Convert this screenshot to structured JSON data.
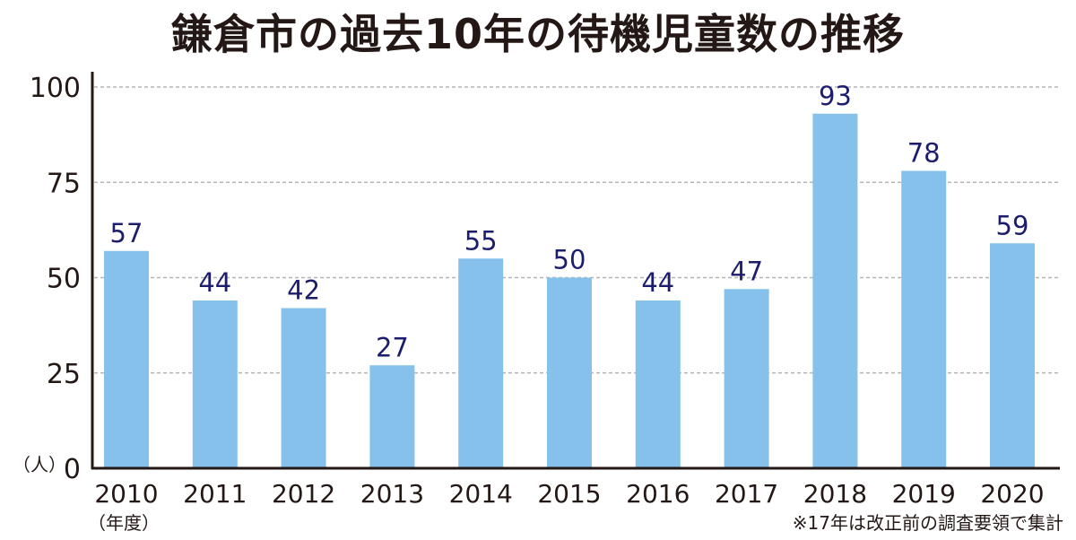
{
  "chart_data": {
    "type": "bar",
    "title": "鎌倉市の過去10年の待機児童数の推移",
    "categories": [
      "2010",
      "2011",
      "2012",
      "2013",
      "2014",
      "2015",
      "2016",
      "2017",
      "2018",
      "2019",
      "2020"
    ],
    "values": [
      57,
      44,
      42,
      27,
      55,
      50,
      44,
      47,
      93,
      78,
      59
    ],
    "xlabel": "（年度）",
    "ylabel": "（人）",
    "ylim": [
      0,
      100
    ],
    "yticks": [
      0,
      25,
      50,
      75,
      100
    ],
    "grid": true,
    "note": "※17年は改正前の調査要領で集計",
    "colors": {
      "bar": "#85c1ea",
      "label": "#1d1d6e",
      "axis": "#231815",
      "grid": "#b5b5b5"
    }
  }
}
